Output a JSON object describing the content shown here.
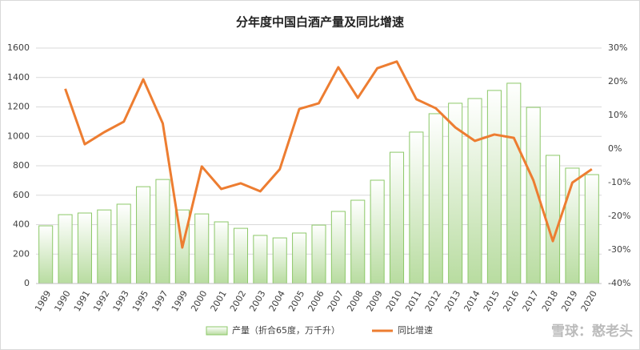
{
  "chart_data": {
    "type": "bar-line",
    "title": "分年度中国白酒产量及同比增速",
    "categories": [
      "1989",
      "1990",
      "1991",
      "1992",
      "1993",
      "1995",
      "1997",
      "1999",
      "2000",
      "2001",
      "2002",
      "2003",
      "2004",
      "2005",
      "2006",
      "2007",
      "2008",
      "2009",
      "2010",
      "2011",
      "2012",
      "2013",
      "2014",
      "2015",
      "2016",
      "2017",
      "2018",
      "2019",
      "2020"
    ],
    "series": [
      {
        "name": "产量（折合65度，万千升）",
        "type": "bar",
        "color": "#8cc868",
        "values": [
          392,
          468,
          479,
          500,
          539,
          658,
          707,
          500,
          473,
          419,
          375,
          327,
          310,
          343,
          397,
          490,
          566,
          702,
          892,
          1029,
          1154,
          1225,
          1257,
          1312,
          1361,
          1197,
          871,
          784,
          740
        ]
      },
      {
        "name": "同比增速",
        "type": "line",
        "axis": "y2",
        "color": "#ed7d31",
        "values": [
          null,
          17.9,
          1.4,
          5,
          8.1,
          20.7,
          7.6,
          -29.3,
          -5.2,
          -11.9,
          -10.2,
          -12.6,
          -6,
          11.9,
          13.6,
          24.3,
          15.2,
          24,
          26,
          14.8,
          12.1,
          6.4,
          2.4,
          4.3,
          3.3,
          -9.3,
          -27.4,
          -10,
          -6
        ]
      }
    ],
    "ylim": [
      0,
      1600
    ],
    "yticks": [
      0,
      200,
      400,
      600,
      800,
      1000,
      1200,
      1400,
      1600
    ],
    "y2lim": [
      -40,
      30
    ],
    "y2ticks": [
      {
        "value": -40,
        "label": "-40%"
      },
      {
        "value": -30,
        "label": "-30%"
      },
      {
        "value": -20,
        "label": "-20%"
      },
      {
        "value": -10,
        "label": "-10%"
      },
      {
        "value": 0,
        "label": "0%"
      },
      {
        "value": 10,
        "label": "10%"
      },
      {
        "value": 20,
        "label": "20%"
      },
      {
        "value": 30,
        "label": "30%"
      }
    ],
    "grid": true,
    "legend": "bottom",
    "watermark": "雪球：憨老头"
  }
}
